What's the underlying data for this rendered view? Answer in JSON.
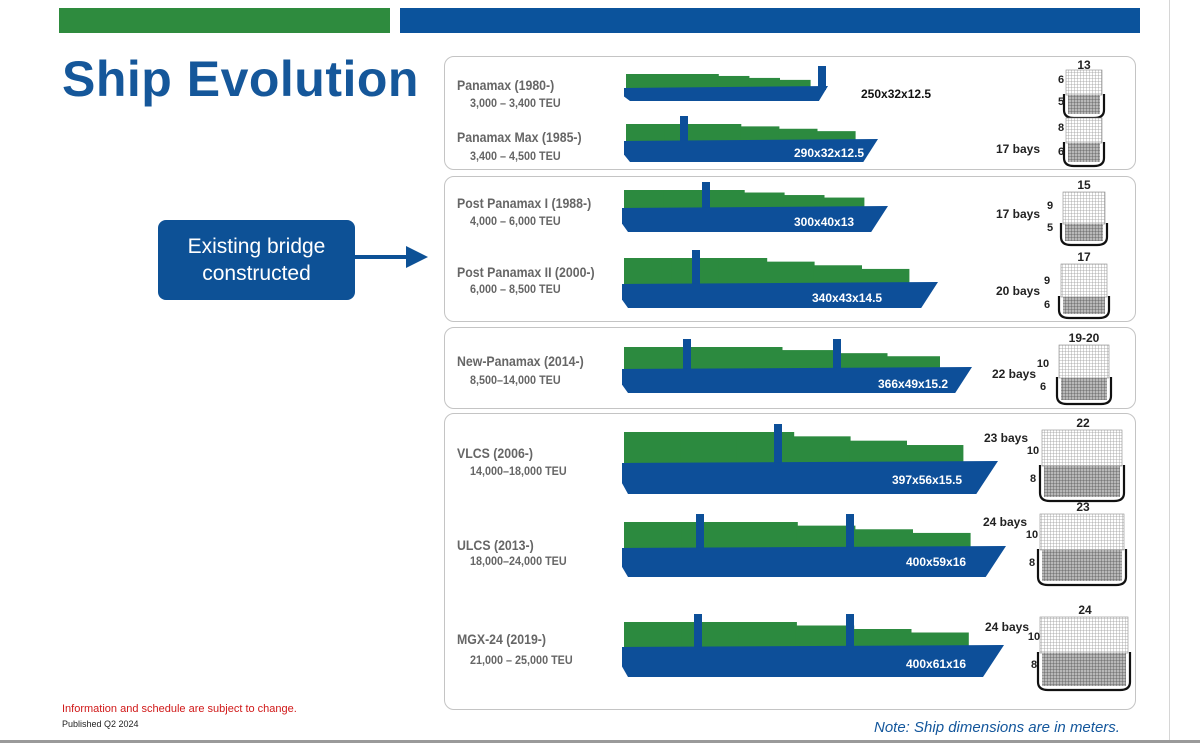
{
  "header": {
    "title": "Ship Evolution",
    "bar_colors": {
      "green": "#2e8b3e",
      "blue": "#0b539c"
    }
  },
  "callout": {
    "line1": "Existing bridge",
    "line2": "constructed",
    "arrow_icon": "right-arrow-icon"
  },
  "footer": {
    "disclaimer": "Information and schedule are subject to change.",
    "published": "Published Q2 2024",
    "note": "Note: Ship dimensions are in meters."
  },
  "colors": {
    "hull": "#0d4f99",
    "containers": "#2c8a3f",
    "text_grey": "#666666"
  },
  "ships": [
    {
      "name": "Panamax (1980-)",
      "teu": "3,000 – 3,400 TEU",
      "dims": "250x32x12.5",
      "bays": "",
      "width_label": "13",
      "upper": "6",
      "lower": "5"
    },
    {
      "name": "Panamax Max (1985-)",
      "teu": "3,400 – 4,500 TEU",
      "dims": "290x32x12.5",
      "bays": "17 bays",
      "width_label": "",
      "upper": "8",
      "lower": "6"
    },
    {
      "name": "Post Panamax I (1988-)",
      "teu": "4,000 – 6,000 TEU",
      "dims": "300x40x13",
      "bays": "17 bays",
      "width_label": "15",
      "upper": "9",
      "lower": "5"
    },
    {
      "name": "Post Panamax II (2000-)",
      "teu": "6,000 – 8,500 TEU",
      "dims": "340x43x14.5",
      "bays": "20 bays",
      "width_label": "17",
      "upper": "9",
      "lower": "6"
    },
    {
      "name": "New-Panamax (2014-)",
      "teu": "8,500–14,000 TEU",
      "dims": "366x49x15.2",
      "bays": "22 bays",
      "width_label": "19-20",
      "upper": "10",
      "lower": "6"
    },
    {
      "name": "VLCS (2006-)",
      "teu": "14,000–18,000 TEU",
      "dims": "397x56x15.5",
      "bays": "23 bays",
      "width_label": "22",
      "upper": "10",
      "lower": "8"
    },
    {
      "name": "ULCS (2013-)",
      "teu": "18,000–24,000 TEU",
      "dims": "400x59x16",
      "bays": "24 bays",
      "width_label": "23",
      "upper": "10",
      "lower": "8"
    },
    {
      "name": "MGX-24 (2019-)",
      "teu": "21,000 – 25,000 TEU",
      "dims": "400x61x16",
      "bays": "24 bays",
      "width_label": "24",
      "upper": "10",
      "lower": "8"
    }
  ]
}
